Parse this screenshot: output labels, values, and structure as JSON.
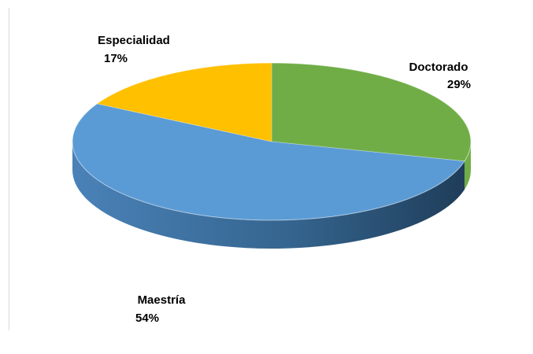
{
  "chart_data": {
    "type": "pie",
    "title": "",
    "slices": [
      {
        "label": "Doctorado",
        "value": 29,
        "value_label": "29%",
        "color": "#70AD47"
      },
      {
        "label": "Maestría",
        "value": 54,
        "value_label": "54%",
        "color": "#5B9BD5"
      },
      {
        "label": "Especialidad",
        "value": 17,
        "value_label": "17%",
        "color": "#FFC000"
      }
    ],
    "style": "3d",
    "legend": "none",
    "data_labels": "outside"
  }
}
